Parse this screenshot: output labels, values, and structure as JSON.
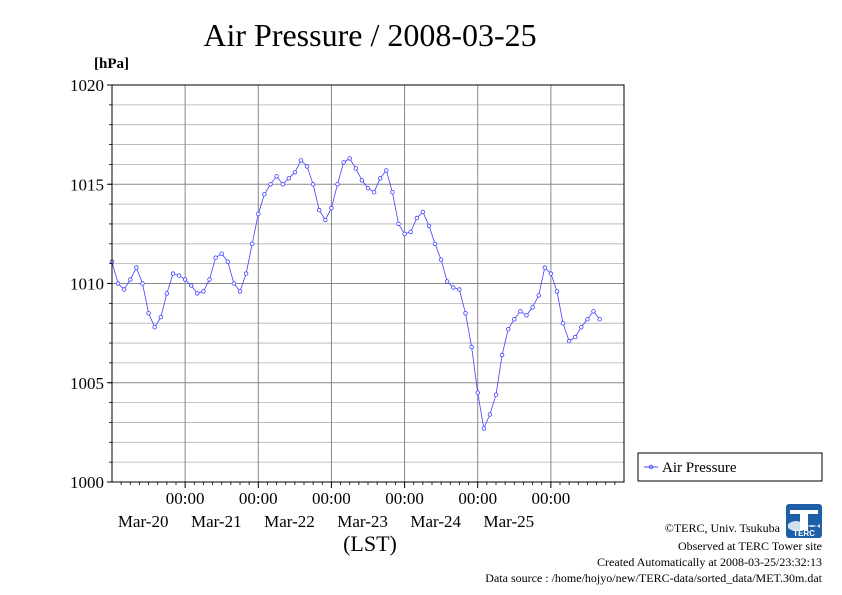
{
  "chart_data": {
    "type": "line",
    "title": "Air Pressure / 2008-03-25",
    "ylabel": "[hPa]",
    "xlabel": "(LST)",
    "ylim": [
      1000,
      1020
    ],
    "yticks": [
      1000,
      1005,
      1010,
      1015,
      1020
    ],
    "xlim": [
      "2008-03-19T00:00",
      "2008-03-26T00:00"
    ],
    "x_tick_times": [
      "2008-03-20T00:00",
      "2008-03-21T00:00",
      "2008-03-22T00:00",
      "2008-03-23T00:00",
      "2008-03-24T00:00",
      "2008-03-25T00:00"
    ],
    "x_tick_time_labels": [
      "00:00",
      "00:00",
      "00:00",
      "00:00",
      "00:00",
      "00:00"
    ],
    "x_date_labels": [
      "Mar-20",
      "Mar-21",
      "Mar-22",
      "Mar-23",
      "Mar-24",
      "Mar-25"
    ],
    "grid": true,
    "legend_position": "right",
    "series": [
      {
        "name": "Air Pressure",
        "color": "#4040ff",
        "marker": "circle",
        "points": [
          [
            "2008-03-19T00:00",
            1011.1
          ],
          [
            "2008-03-19T02:00",
            1010.0
          ],
          [
            "2008-03-19T04:00",
            1009.7
          ],
          [
            "2008-03-19T06:00",
            1010.2
          ],
          [
            "2008-03-19T08:00",
            1010.8
          ],
          [
            "2008-03-19T10:00",
            1010.0
          ],
          [
            "2008-03-19T12:00",
            1008.5
          ],
          [
            "2008-03-19T14:00",
            1007.8
          ],
          [
            "2008-03-19T16:00",
            1008.3
          ],
          [
            "2008-03-19T18:00",
            1009.5
          ],
          [
            "2008-03-19T20:00",
            1010.5
          ],
          [
            "2008-03-19T22:00",
            1010.4
          ],
          [
            "2008-03-20T00:00",
            1010.2
          ],
          [
            "2008-03-20T02:00",
            1009.9
          ],
          [
            "2008-03-20T04:00",
            1009.5
          ],
          [
            "2008-03-20T06:00",
            1009.6
          ],
          [
            "2008-03-20T08:00",
            1010.2
          ],
          [
            "2008-03-20T10:00",
            1011.3
          ],
          [
            "2008-03-20T12:00",
            1011.5
          ],
          [
            "2008-03-20T14:00",
            1011.1
          ],
          [
            "2008-03-20T16:00",
            1010.0
          ],
          [
            "2008-03-20T18:00",
            1009.6
          ],
          [
            "2008-03-20T20:00",
            1010.5
          ],
          [
            "2008-03-20T22:00",
            1012.0
          ],
          [
            "2008-03-21T00:00",
            1013.5
          ],
          [
            "2008-03-21T02:00",
            1014.5
          ],
          [
            "2008-03-21T04:00",
            1015.0
          ],
          [
            "2008-03-21T06:00",
            1015.4
          ],
          [
            "2008-03-21T08:00",
            1015.0
          ],
          [
            "2008-03-21T10:00",
            1015.3
          ],
          [
            "2008-03-21T12:00",
            1015.6
          ],
          [
            "2008-03-21T14:00",
            1016.2
          ],
          [
            "2008-03-21T16:00",
            1015.9
          ],
          [
            "2008-03-21T18:00",
            1015.0
          ],
          [
            "2008-03-21T20:00",
            1013.7
          ],
          [
            "2008-03-21T22:00",
            1013.2
          ],
          [
            "2008-03-22T00:00",
            1013.8
          ],
          [
            "2008-03-22T02:00",
            1015.0
          ],
          [
            "2008-03-22T04:00",
            1016.1
          ],
          [
            "2008-03-22T06:00",
            1016.3
          ],
          [
            "2008-03-22T08:00",
            1015.8
          ],
          [
            "2008-03-22T10:00",
            1015.2
          ],
          [
            "2008-03-22T12:00",
            1014.8
          ],
          [
            "2008-03-22T14:00",
            1014.6
          ],
          [
            "2008-03-22T16:00",
            1015.3
          ],
          [
            "2008-03-22T18:00",
            1015.7
          ],
          [
            "2008-03-22T20:00",
            1014.6
          ],
          [
            "2008-03-22T22:00",
            1013.0
          ],
          [
            "2008-03-23T00:00",
            1012.5
          ],
          [
            "2008-03-23T02:00",
            1012.6
          ],
          [
            "2008-03-23T04:00",
            1013.3
          ],
          [
            "2008-03-23T06:00",
            1013.6
          ],
          [
            "2008-03-23T08:00",
            1012.9
          ],
          [
            "2008-03-23T10:00",
            1012.0
          ],
          [
            "2008-03-23T12:00",
            1011.2
          ],
          [
            "2008-03-23T14:00",
            1010.1
          ],
          [
            "2008-03-23T16:00",
            1009.8
          ],
          [
            "2008-03-23T18:00",
            1009.7
          ],
          [
            "2008-03-23T20:00",
            1008.5
          ],
          [
            "2008-03-23T22:00",
            1006.8
          ],
          [
            "2008-03-24T00:00",
            1004.5
          ],
          [
            "2008-03-24T02:00",
            1002.7
          ],
          [
            "2008-03-24T04:00",
            1003.4
          ],
          [
            "2008-03-24T06:00",
            1004.4
          ],
          [
            "2008-03-24T08:00",
            1006.4
          ],
          [
            "2008-03-24T10:00",
            1007.7
          ],
          [
            "2008-03-24T12:00",
            1008.2
          ],
          [
            "2008-03-24T14:00",
            1008.6
          ],
          [
            "2008-03-24T16:00",
            1008.4
          ],
          [
            "2008-03-24T18:00",
            1008.8
          ],
          [
            "2008-03-24T20:00",
            1009.4
          ],
          [
            "2008-03-24T22:00",
            1010.8
          ],
          [
            "2008-03-25T00:00",
            1010.5
          ],
          [
            "2008-03-25T02:00",
            1009.6
          ],
          [
            "2008-03-25T04:00",
            1008.0
          ],
          [
            "2008-03-25T06:00",
            1007.1
          ],
          [
            "2008-03-25T08:00",
            1007.3
          ],
          [
            "2008-03-25T10:00",
            1007.8
          ],
          [
            "2008-03-25T12:00",
            1008.2
          ],
          [
            "2008-03-25T14:00",
            1008.6
          ],
          [
            "2008-03-25T16:00",
            1008.2
          ]
        ]
      }
    ]
  },
  "footer": {
    "copyright": "©TERC, Univ. Tsukuba",
    "observed": "Observed at TERC Tower site",
    "created": "Created Automatically at 2008-03-25/23:32:13",
    "source": "Data source : /home/hojyo/new/TERC-data/sorted_data/MET.30m.dat"
  },
  "logo": {
    "text": "TERC",
    "color": "#1e5fa8"
  }
}
